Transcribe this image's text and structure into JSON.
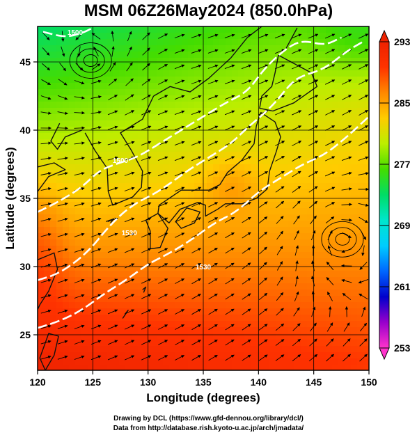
{
  "title": "MSM 06Z26May2024 (850.0hPa)",
  "credits": {
    "drawing": "Drawing by DCL (https://www.gfd-dennou.org/library/dcl/)",
    "data": "Data from http://database.rish.kyoto-u.ac.jp/arch/jmadata/"
  },
  "chart_data": {
    "type": "heatmap",
    "xlabel": "Longitude (degrees)",
    "ylabel": "Latitude  (degrees)",
    "xlim": [
      120,
      150
    ],
    "ylim": [
      22.4,
      47.6
    ],
    "x_ticks": [
      120,
      125,
      130,
      135,
      140,
      145,
      150
    ],
    "y_ticks": [
      25,
      30,
      35,
      40,
      45
    ],
    "colorbar": {
      "min": 253,
      "max": 293,
      "tick_values": [
        253,
        261,
        269,
        277,
        285,
        293
      ],
      "colors": [
        "#ff33cc",
        "#9900cc",
        "#0000cc",
        "#0066ff",
        "#00ccff",
        "#00e6cc",
        "#00dd66",
        "#44dd00",
        "#bbee00",
        "#ffcc00",
        "#ff8800",
        "#ff3300",
        "#ee2200"
      ]
    },
    "contours": [
      {
        "label": "1500",
        "points": [
          [
            120.5,
            47.2
          ],
          [
            122.5,
            46.8
          ],
          [
            124.0,
            47.1
          ],
          [
            125.0,
            47.5
          ]
        ],
        "label_at": [
          123.4,
          47.0
        ]
      },
      {
        "label": "1500",
        "points": [
          [
            120.0,
            34.0
          ],
          [
            122.0,
            34.8
          ],
          [
            124.0,
            35.8
          ],
          [
            125.5,
            37.0
          ],
          [
            127.0,
            37.5
          ],
          [
            129.0,
            38.0
          ],
          [
            131.0,
            39.0
          ],
          [
            133.0,
            40.0
          ],
          [
            135.0,
            41.0
          ],
          [
            137.0,
            42.0
          ],
          [
            139.0,
            42.8
          ],
          [
            140.5,
            44.5
          ],
          [
            142.5,
            46.0
          ],
          [
            144.0,
            46.6
          ],
          [
            146.0,
            46.2
          ],
          [
            147.5,
            46.8
          ]
        ],
        "label_at": [
          127.5,
          37.6
        ]
      },
      {
        "label": "1530",
        "points": [
          [
            120.0,
            29.0
          ],
          [
            122.0,
            29.5
          ],
          [
            124.5,
            31.0
          ],
          [
            126.5,
            33.0
          ],
          [
            128.5,
            34.5
          ],
          [
            131.0,
            35.5
          ],
          [
            133.5,
            37.0
          ],
          [
            135.5,
            38.0
          ],
          [
            137.5,
            39.0
          ],
          [
            139.0,
            40.2
          ],
          [
            140.2,
            41.0
          ],
          [
            141.5,
            42.0
          ],
          [
            143.0,
            43.5
          ],
          [
            144.0,
            44.0
          ],
          [
            146.0,
            44.5
          ],
          [
            148.0,
            45.8
          ],
          [
            149.5,
            46.5
          ]
        ],
        "label_at": [
          128.3,
          32.3
        ]
      },
      {
        "label": "1530",
        "points": [
          [
            120.0,
            25.5
          ],
          [
            122.0,
            26.0
          ],
          [
            124.0,
            26.8
          ],
          [
            126.0,
            28.0
          ],
          [
            128.0,
            29.0
          ],
          [
            130.0,
            30.2
          ],
          [
            132.0,
            31.0
          ],
          [
            134.0,
            32.0
          ],
          [
            136.0,
            33.2
          ],
          [
            138.0,
            34.0
          ],
          [
            140.0,
            35.5
          ],
          [
            142.0,
            36.5
          ],
          [
            144.0,
            37.5
          ],
          [
            146.0,
            38.2
          ],
          [
            148.0,
            39.5
          ],
          [
            150.0,
            41.0
          ]
        ],
        "label_at": [
          135.0,
          29.8
        ]
      }
    ],
    "circulations": [
      {
        "kind": "cyclone",
        "center": [
          124.8,
          45.1
        ]
      },
      {
        "kind": "anticyclone",
        "center": [
          147.6,
          32.0
        ]
      }
    ]
  }
}
